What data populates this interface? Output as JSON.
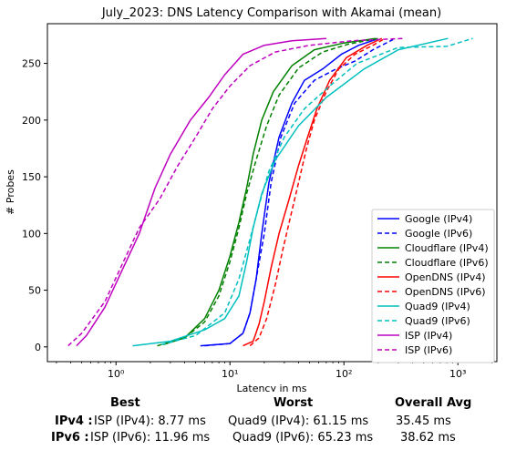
{
  "chart_data": {
    "type": "line",
    "title": "July_2023: DNS Latency Comparison with Akamai (mean)",
    "xlabel": "Latency in ms",
    "ylabel": "# Probes",
    "xscale": "log",
    "xlim": [
      0.25,
      2200
    ],
    "ylim": [
      -13,
      285
    ],
    "x_ticks": [
      1,
      10,
      100,
      1000
    ],
    "x_tick_labels": [
      "10⁰",
      "10¹",
      "10²",
      "10³"
    ],
    "y_ticks": [
      0,
      50,
      100,
      150,
      200,
      250
    ],
    "grid": false,
    "legend_position": "lower right",
    "series": [
      {
        "name": "Google (IPv4)",
        "color": "#0000ff",
        "dash": "solid",
        "points": [
          [
            5.5,
            1
          ],
          [
            10,
            3
          ],
          [
            13,
            12
          ],
          [
            15,
            30
          ],
          [
            17,
            60
          ],
          [
            19,
            100
          ],
          [
            22,
            145
          ],
          [
            27,
            185
          ],
          [
            35,
            215
          ],
          [
            45,
            235
          ],
          [
            65,
            245
          ],
          [
            95,
            258
          ],
          [
            135,
            266
          ],
          [
            190,
            271
          ]
        ]
      },
      {
        "name": "Google (IPv6)",
        "color": "#0000ff",
        "dash": "dashed",
        "points": [
          [
            6,
            1
          ],
          [
            10,
            3
          ],
          [
            13,
            12
          ],
          [
            15,
            30
          ],
          [
            17,
            60
          ],
          [
            20,
            100
          ],
          [
            23,
            145
          ],
          [
            28,
            185
          ],
          [
            37,
            215
          ],
          [
            55,
            235
          ],
          [
            85,
            245
          ],
          [
            125,
            252
          ],
          [
            180,
            262
          ],
          [
            270,
            271
          ]
        ]
      },
      {
        "name": "Cloudflare (IPv4)",
        "color": "#008000",
        "dash": "solid",
        "points": [
          [
            2.6,
            2
          ],
          [
            4,
            8
          ],
          [
            6,
            25
          ],
          [
            8,
            50
          ],
          [
            10,
            80
          ],
          [
            12,
            110
          ],
          [
            14,
            140
          ],
          [
            16,
            170
          ],
          [
            19,
            200
          ],
          [
            24,
            225
          ],
          [
            35,
            248
          ],
          [
            55,
            262
          ],
          [
            100,
            268
          ],
          [
            190,
            272
          ]
        ]
      },
      {
        "name": "Cloudflare (IPv6)",
        "color": "#008000",
        "dash": "dashed",
        "points": [
          [
            2.3,
            1
          ],
          [
            4,
            8
          ],
          [
            6,
            22
          ],
          [
            8,
            45
          ],
          [
            10,
            75
          ],
          [
            12,
            105
          ],
          [
            14,
            135
          ],
          [
            17,
            165
          ],
          [
            21,
            195
          ],
          [
            27,
            222
          ],
          [
            40,
            246
          ],
          [
            65,
            260
          ],
          [
            110,
            267
          ],
          [
            200,
            272
          ]
        ]
      },
      {
        "name": "OpenDNS (IPv4)",
        "color": "#ff0000",
        "dash": "solid",
        "points": [
          [
            13,
            1
          ],
          [
            16,
            5
          ],
          [
            18,
            20
          ],
          [
            20,
            40
          ],
          [
            23,
            70
          ],
          [
            27,
            100
          ],
          [
            33,
            130
          ],
          [
            40,
            160
          ],
          [
            48,
            185
          ],
          [
            58,
            210
          ],
          [
            75,
            235
          ],
          [
            105,
            255
          ],
          [
            160,
            266
          ],
          [
            215,
            272
          ]
        ]
      },
      {
        "name": "OpenDNS (IPv6)",
        "color": "#ff0000",
        "dash": "dashed",
        "points": [
          [
            15,
            1
          ],
          [
            18,
            8
          ],
          [
            21,
            25
          ],
          [
            25,
            55
          ],
          [
            29,
            85
          ],
          [
            34,
            115
          ],
          [
            40,
            145
          ],
          [
            47,
            175
          ],
          [
            55,
            200
          ],
          [
            70,
            225
          ],
          [
            90,
            245
          ],
          [
            125,
            258
          ],
          [
            180,
            266
          ],
          [
            230,
            272
          ]
        ]
      },
      {
        "name": "Quad9 (IPv4)",
        "color": "#00bfbf",
        "dash": "solid",
        "points": [
          [
            1.4,
            1
          ],
          [
            3,
            5
          ],
          [
            6,
            15
          ],
          [
            9,
            25
          ],
          [
            12,
            45
          ],
          [
            14,
            75
          ],
          [
            16,
            105
          ],
          [
            19,
            135
          ],
          [
            25,
            165
          ],
          [
            40,
            195
          ],
          [
            70,
            220
          ],
          [
            150,
            245
          ],
          [
            300,
            262
          ],
          [
            820,
            272
          ]
        ]
      },
      {
        "name": "Quad9 (IPv6)",
        "color": "#00bfbf",
        "dash": "dashed",
        "points": [
          [
            2.5,
            2
          ],
          [
            5,
            10
          ],
          [
            9,
            30
          ],
          [
            12,
            60
          ],
          [
            15,
            95
          ],
          [
            18,
            125
          ],
          [
            22,
            155
          ],
          [
            30,
            185
          ],
          [
            45,
            210
          ],
          [
            75,
            230
          ],
          [
            130,
            250
          ],
          [
            300,
            264
          ],
          [
            800,
            265
          ],
          [
            1350,
            272
          ]
        ]
      },
      {
        "name": "ISP (IPv4)",
        "color": "#bf00bf",
        "dash": "solid",
        "points": [
          [
            0.45,
            1
          ],
          [
            0.55,
            10
          ],
          [
            0.8,
            35
          ],
          [
            1.1,
            65
          ],
          [
            1.6,
            100
          ],
          [
            2.2,
            140
          ],
          [
            3,
            170
          ],
          [
            4.5,
            200
          ],
          [
            6.5,
            220
          ],
          [
            9,
            240
          ],
          [
            13,
            258
          ],
          [
            20,
            266
          ],
          [
            35,
            270
          ],
          [
            70,
            272
          ]
        ]
      },
      {
        "name": "ISP (IPv6)",
        "color": "#bf00bf",
        "dash": "dashed",
        "points": [
          [
            0.38,
            1
          ],
          [
            0.5,
            12
          ],
          [
            0.8,
            40
          ],
          [
            1.1,
            70
          ],
          [
            1.6,
            105
          ],
          [
            2.4,
            130
          ],
          [
            3.5,
            160
          ],
          [
            5,
            185
          ],
          [
            7,
            210
          ],
          [
            10,
            230
          ],
          [
            15,
            248
          ],
          [
            25,
            260
          ],
          [
            50,
            266
          ],
          [
            120,
            270
          ],
          [
            330,
            272
          ]
        ]
      }
    ]
  },
  "summary": {
    "headers": {
      "best": "Best",
      "worst": "Worst",
      "avg": "Overall Avg"
    },
    "rows": [
      {
        "label": "IPv4 :",
        "best": "ISP (IPv4): 8.77 ms",
        "worst": "Quad9 (IPv4): 61.15 ms",
        "avg": "35.45 ms"
      },
      {
        "label": "IPv6 :",
        "best": "ISP (IPv6): 11.96 ms",
        "worst": "Quad9 (IPv6): 65.23 ms",
        "avg": "38.62 ms"
      }
    ]
  }
}
